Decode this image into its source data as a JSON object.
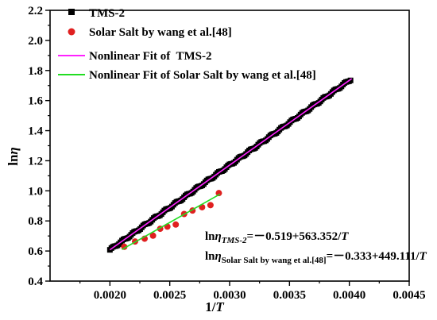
{
  "chart_data": {
    "type": "scatter",
    "xlabel": "1/T",
    "ylabel": "lnη",
    "xlim": [
      0.0015,
      0.0045
    ],
    "ylim": [
      0.4,
      2.2
    ],
    "x_ticks": [
      "0.0020",
      "0.0025",
      "0.0030",
      "0.0035",
      "0.0040",
      "0.0045"
    ],
    "y_ticks": [
      "0.4",
      "0.6",
      "0.8",
      "1.0",
      "1.2",
      "1.4",
      "1.6",
      "1.8",
      "2.0",
      "2.2"
    ],
    "grid": false,
    "legend_position": "top-left",
    "series": [
      {
        "name": "TMS-2",
        "marker": "square",
        "color": "#000000",
        "x_range": [
          0.002,
          0.00401
        ],
        "point_count": 160,
        "fit": {
          "intercept": -0.519,
          "slope": 563.352
        }
      },
      {
        "name": "Solar Salt by wang et al.[48]",
        "marker": "circle",
        "color": "#e02020",
        "x": [
          0.00212,
          0.00221,
          0.00229,
          0.00236,
          0.00242,
          0.00248,
          0.00255,
          0.00262,
          0.00269,
          0.00277,
          0.00284,
          0.00291
        ],
        "y": [
          0.628,
          0.663,
          0.682,
          0.702,
          0.748,
          0.762,
          0.776,
          0.846,
          0.869,
          0.891,
          0.905,
          0.985
        ]
      }
    ],
    "fits": [
      {
        "name": "Nonlinear Fit of  TMS-2",
        "color": "#ff22ff",
        "intercept": -0.519,
        "slope": 563.352,
        "x_range": [
          0.002,
          0.00402
        ]
      },
      {
        "name": "Nonlinear Fit of Solar Salt by wang et al.[48]",
        "color": "#22dd22",
        "intercept": -0.333,
        "slope": 449.111,
        "x_range": [
          0.0021,
          0.00292
        ]
      }
    ],
    "legend": [
      "TMS-2",
      "Solar Salt by wang et al.[48]",
      "Nonlinear Fit of  TMS-2",
      "Nonlinear Fit of Solar Salt by wang et al.[48]"
    ],
    "annotations": {
      "eq1": {
        "prefix": "ln",
        "eta": "η",
        "sub": "TMS-2",
        "rhs": "=－0.519+563.352/",
        "var": "T"
      },
      "eq2": {
        "prefix": "ln",
        "eta": "η",
        "sub": "Solar Salt by wang et al.[48]",
        "rhs": "=－0.333+449.111/",
        "var": "T"
      }
    }
  }
}
